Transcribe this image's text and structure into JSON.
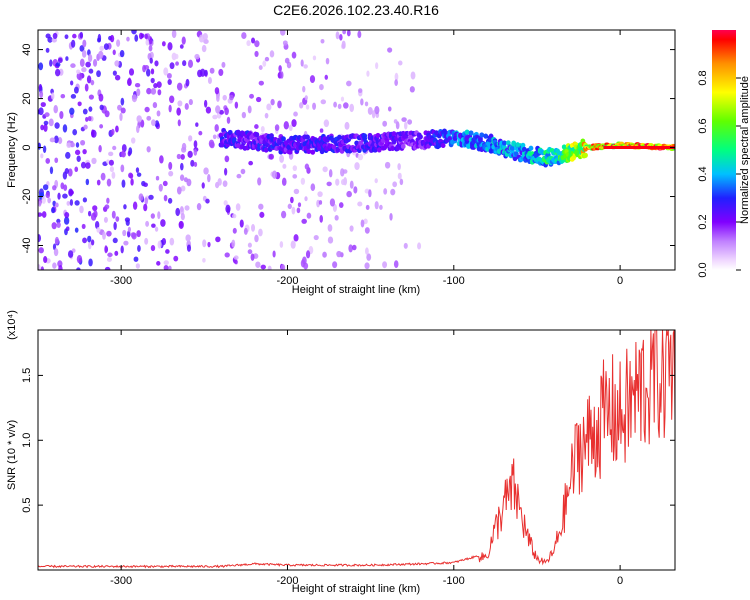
{
  "title": "C2E6.2026.102.23.40.R16",
  "chart_data": [
    {
      "type": "heatmap",
      "xlabel": "Height of straight line (km)",
      "ylabel": "Frequency (Hz)",
      "xlim": [
        -350,
        33
      ],
      "ylim": [
        -50,
        48
      ],
      "xticks": [
        -300,
        -200,
        -100,
        0
      ],
      "yticks": [
        -40,
        -20,
        0,
        20,
        40
      ],
      "colorbar": {
        "label": "Normalized spectral amplitude",
        "range": [
          0.0,
          1.0
        ],
        "ticks": [
          "0.0",
          "0.2",
          "0.4",
          "0.6",
          "0.8"
        ]
      },
      "frequency_ridge": {
        "x": [
          -240,
          -200,
          -150,
          -120,
          -100,
          -80,
          -60,
          -45,
          -35,
          -20,
          0,
          33
        ],
        "y": [
          4,
          1,
          2,
          3,
          4,
          2,
          -2,
          -4,
          -3,
          0,
          1,
          0
        ],
        "peak_amplitude": [
          0.3,
          0.3,
          0.3,
          0.25,
          0.4,
          0.45,
          0.45,
          0.55,
          0.6,
          0.9,
          0.95,
          1.0
        ]
      },
      "broadband_noise_region": {
        "x_from": -350,
        "x_to": -120
      }
    },
    {
      "type": "line",
      "xlabel": "Height of straight line (km)",
      "ylabel": "SNR (10 * v/v)",
      "y_multiplier": "(x10⁴)",
      "xlim": [
        -350,
        33
      ],
      "ylim": [
        0,
        1.85
      ],
      "xticks": [
        -300,
        -200,
        -100,
        0
      ],
      "yticks": [
        "0.5",
        "1.0",
        "1.5"
      ],
      "color": "#e8302f",
      "series": [
        {
          "x": [
            -350,
            -240,
            -220,
            -200,
            -150,
            -120,
            -100,
            -80,
            -75,
            -70,
            -64,
            -60,
            -55,
            -50,
            -45,
            -40,
            -35,
            -30,
            -25,
            -20,
            -15,
            -10,
            -5,
            0,
            5,
            10,
            15,
            20,
            25,
            30,
            33
          ],
          "y": [
            0.02,
            0.02,
            0.04,
            0.03,
            0.03,
            0.04,
            0.05,
            0.12,
            0.35,
            0.55,
            0.7,
            0.5,
            0.25,
            0.1,
            0.06,
            0.15,
            0.4,
            0.75,
            1.05,
            1.1,
            1.2,
            1.3,
            1.35,
            1.3,
            1.4,
            1.5,
            1.6,
            1.68,
            1.72,
            1.78,
            1.78
          ]
        }
      ]
    }
  ]
}
